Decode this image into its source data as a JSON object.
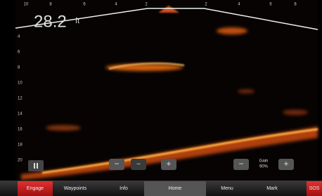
{
  "depth": {
    "value": "28.2",
    "unit": "ft"
  },
  "top_scale": [
    "10",
    "8",
    "6",
    "4",
    "2",
    "2",
    "4",
    "6",
    "8"
  ],
  "depth_scale": [
    "4",
    "6",
    "8",
    "10",
    "12",
    "14",
    "16",
    "18",
    "20"
  ],
  "controls": {
    "gain_label": "Gain",
    "gain_value": "90%"
  },
  "menu": [
    "Engage",
    "Waypoints",
    "Info",
    "Home",
    "Menu",
    "Mark",
    "SOS"
  ]
}
